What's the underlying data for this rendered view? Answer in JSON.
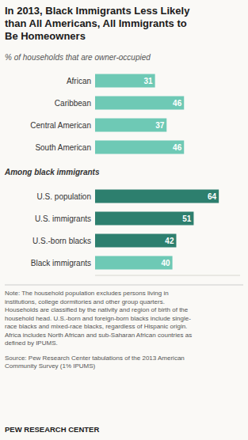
{
  "chart_data": {
    "type": "bar",
    "orientation": "horizontal",
    "title": "In 2013, Black Immigrants Less Likely\nthan All Americans, All Immigrants to\nBe Homeowners",
    "subtitle": "% of households that are owner-occupied",
    "categories": [
      "African",
      "Caribbean",
      "Central American",
      "South American",
      "U.S. population",
      "U.S. immigrants",
      "U.S.-born blacks",
      "Black immigrants"
    ],
    "values": [
      31,
      46,
      37,
      46,
      64,
      51,
      42,
      40
    ],
    "colors": [
      "#6ec9b5",
      "#6ec9b5",
      "#6ec9b5",
      "#6ec9b5",
      "#2d7f6e",
      "#2d7f6e",
      "#2d7f6e",
      "#6ec9b5"
    ],
    "xlim": [
      0,
      75
    ],
    "tick_labels": "y",
    "data_labels": true,
    "grid": false,
    "annotations": [
      "Among black immigrants",
      "Note:  The household population excludes persons living in\ninstitutions, college dormitories and other group quarters.\nHouseholds are classified by the nativity and region of birth of the\nhousehold head. U.S.-born and foreign-born blacks include single-\nrace blacks and mixed-race blacks, regardless of Hispanic origin.\nAfrica includes North African and sub-Saharan African countries as\ndefined by IPUMS.",
      "Source: Pew Research Center tabulations of the 2013 American\nCommunity Survey (1% IPUMS)",
      "PEW RESEARCH CENTER"
    ]
  }
}
